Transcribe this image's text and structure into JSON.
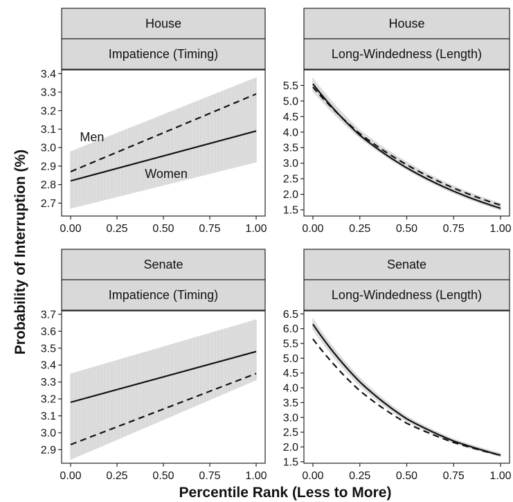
{
  "chart_data": {
    "type": "line",
    "xlabel": "Percentile Rank (Less to More)",
    "ylabel": "Probability of Interruption (%)",
    "x_ticks": [
      "0.00",
      "0.25",
      "0.50",
      "0.75",
      "1.00"
    ],
    "panels": [
      {
        "strip_top": "House",
        "strip_bottom": "Impatience (Timing)",
        "ylim": [
          2.63,
          3.42
        ],
        "y_ticks": [
          "2.7",
          "2.8",
          "2.9",
          "3.0",
          "3.1",
          "3.2",
          "3.3",
          "3.4"
        ],
        "y_tick_values": [
          2.7,
          2.8,
          2.9,
          3.0,
          3.1,
          3.2,
          3.3,
          3.4
        ],
        "annotations": [
          {
            "text": "Men",
            "x": 0.05,
            "y": 3.035
          },
          {
            "text": "Women",
            "x": 0.4,
            "y": 2.835
          }
        ],
        "series": [
          {
            "name": "Men",
            "line": "dashed",
            "x": [
              0,
              1
            ],
            "y": [
              2.87,
              3.29
            ]
          },
          {
            "name": "Women",
            "line": "solid",
            "x": [
              0,
              1
            ],
            "y": [
              2.82,
              3.09
            ]
          }
        ],
        "band": {
          "x": [
            0,
            1
          ],
          "lower": [
            2.67,
            2.92
          ],
          "upper": [
            2.98,
            3.38
          ]
        }
      },
      {
        "strip_top": "House",
        "strip_bottom": "Long-Windedness (Length)",
        "ylim": [
          1.3,
          6.0
        ],
        "y_ticks": [
          "1.5",
          "2.0",
          "2.5",
          "3.0",
          "3.5",
          "4.0",
          "4.5",
          "5.0",
          "5.5"
        ],
        "y_tick_values": [
          1.5,
          2.0,
          2.5,
          3.0,
          3.5,
          4.0,
          4.5,
          5.0,
          5.5
        ],
        "series": [
          {
            "name": "Men",
            "line": "dashed",
            "x": [
              0,
              0.25,
              0.5,
              0.75,
              1
            ],
            "y": [
              5.45,
              3.95,
              2.95,
              2.2,
              1.65
            ]
          },
          {
            "name": "Women",
            "line": "solid",
            "x": [
              0,
              0.25,
              0.5,
              0.75,
              1
            ],
            "y": [
              5.55,
              3.9,
              2.85,
              2.1,
              1.55
            ]
          }
        ],
        "band": {
          "x": [
            0,
            0.25,
            0.5,
            0.75,
            1
          ],
          "lower": [
            5.3,
            3.8,
            2.78,
            2.02,
            1.48
          ],
          "upper": [
            5.75,
            4.08,
            3.05,
            2.28,
            1.72
          ]
        }
      },
      {
        "strip_top": "Senate",
        "strip_bottom": "Impatience (Timing)",
        "ylim": [
          2.82,
          3.72
        ],
        "y_ticks": [
          "2.9",
          "3.0",
          "3.1",
          "3.2",
          "3.3",
          "3.4",
          "3.5",
          "3.6",
          "3.7"
        ],
        "y_tick_values": [
          2.9,
          3.0,
          3.1,
          3.2,
          3.3,
          3.4,
          3.5,
          3.6,
          3.7
        ],
        "series": [
          {
            "name": "Men",
            "line": "dashed",
            "x": [
              0,
              1
            ],
            "y": [
              2.93,
              3.35
            ]
          },
          {
            "name": "Women",
            "line": "solid",
            "x": [
              0,
              1
            ],
            "y": [
              3.18,
              3.48
            ]
          }
        ],
        "band": {
          "x": [
            0,
            1
          ],
          "lower": [
            2.84,
            3.31
          ],
          "upper": [
            3.35,
            3.67
          ]
        }
      },
      {
        "strip_top": "Senate",
        "strip_bottom": "Long-Windedness (Length)",
        "ylim": [
          1.45,
          6.6
        ],
        "y_ticks": [
          "1.5",
          "2.0",
          "2.5",
          "3.0",
          "3.5",
          "4.0",
          "4.5",
          "5.0",
          "5.5",
          "6.0",
          "6.5"
        ],
        "y_tick_values": [
          1.5,
          2.0,
          2.5,
          3.0,
          3.5,
          4.0,
          4.5,
          5.0,
          5.5,
          6.0,
          6.5
        ],
        "series": [
          {
            "name": "Men",
            "line": "dashed",
            "x": [
              0,
              0.25,
              0.5,
              0.75,
              1
            ],
            "y": [
              5.65,
              3.9,
              2.8,
              2.15,
              1.72
            ]
          },
          {
            "name": "Women",
            "line": "solid",
            "x": [
              0,
              0.25,
              0.5,
              0.75,
              1
            ],
            "y": [
              6.15,
              4.2,
              2.95,
              2.2,
              1.72
            ]
          }
        ],
        "band": {
          "x": [
            0,
            0.25,
            0.5,
            0.75,
            1
          ],
          "lower": [
            5.95,
            4.05,
            2.85,
            2.12,
            1.66
          ],
          "upper": [
            6.35,
            4.35,
            3.05,
            2.28,
            1.8
          ]
        }
      }
    ]
  }
}
